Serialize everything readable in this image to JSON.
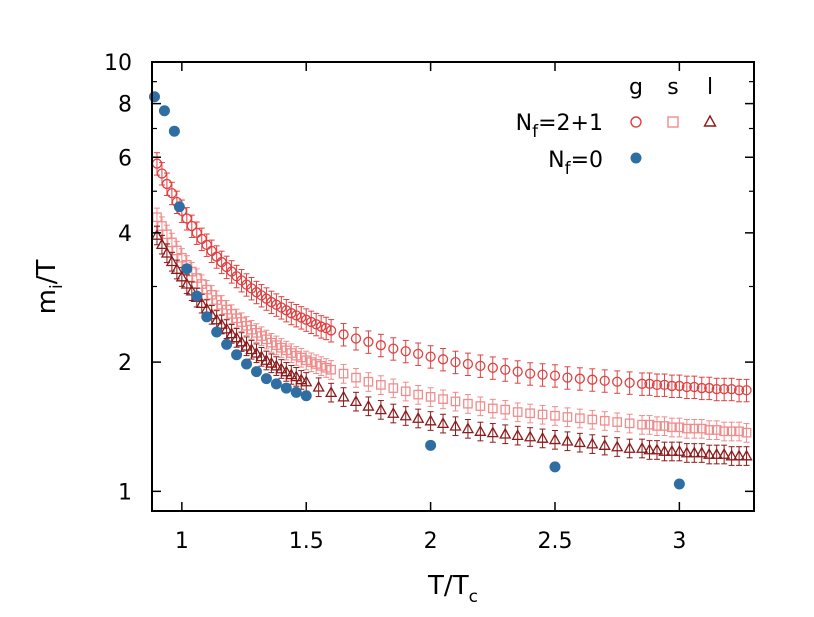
{
  "chart_data": {
    "type": "scatter",
    "title": "",
    "xlabel": {
      "main": "T/T",
      "sub": "c"
    },
    "ylabel": {
      "main": "m",
      "sub": "i",
      "tail": "/T"
    },
    "xlim": [
      0.88,
      3.3
    ],
    "ylim": [
      0.9,
      10
    ],
    "yscale": "log",
    "grid": false,
    "legend_placement": "top-right",
    "xticks": [
      "1",
      "1.5",
      "2",
      "2.5",
      "3"
    ],
    "xtick_values": [
      1,
      1.5,
      2,
      2.5,
      3
    ],
    "yticks": [
      "1",
      "2",
      "4",
      "6",
      "8",
      "10"
    ],
    "ytick_values": [
      1,
      2,
      4,
      6,
      8,
      10
    ],
    "legend": {
      "column_headers": [
        "g",
        "s",
        "l"
      ],
      "rows": [
        {
          "main": "N",
          "sub": "f",
          "tail": "=2+1"
        },
        {
          "main": "N",
          "sub": "f",
          "tail": "=0"
        }
      ]
    },
    "colors": {
      "g": "#e04040",
      "s": "#f08c8c",
      "l": "#8c1a1a",
      "nf0": "#2e6ea2"
    },
    "series": [
      {
        "key": "g",
        "marker": "circle",
        "x": [
          0.9,
          0.92,
          0.94,
          0.96,
          0.98,
          1.0,
          1.02,
          1.04,
          1.06,
          1.08,
          1.1,
          1.12,
          1.14,
          1.16,
          1.18,
          1.2,
          1.22,
          1.24,
          1.26,
          1.28,
          1.3,
          1.32,
          1.34,
          1.36,
          1.38,
          1.4,
          1.42,
          1.44,
          1.46,
          1.48,
          1.5,
          1.52,
          1.54,
          1.56,
          1.58,
          1.6,
          1.65,
          1.7,
          1.75,
          1.8,
          1.85,
          1.9,
          1.95,
          2.0,
          2.05,
          2.1,
          2.15,
          2.2,
          2.25,
          2.3,
          2.35,
          2.4,
          2.45,
          2.5,
          2.55,
          2.6,
          2.65,
          2.7,
          2.75,
          2.8,
          2.85,
          2.88,
          2.91,
          2.94,
          2.97,
          3.0,
          3.03,
          3.06,
          3.09,
          3.12,
          3.15,
          3.18,
          3.21,
          3.24,
          3.27
        ],
        "y": [
          5.8,
          5.5,
          5.2,
          4.95,
          4.72,
          4.5,
          4.32,
          4.15,
          4.0,
          3.87,
          3.75,
          3.63,
          3.52,
          3.42,
          3.33,
          3.25,
          3.17,
          3.1,
          3.03,
          2.97,
          2.91,
          2.86,
          2.81,
          2.76,
          2.72,
          2.68,
          2.64,
          2.6,
          2.57,
          2.54,
          2.51,
          2.48,
          2.45,
          2.42,
          2.4,
          2.37,
          2.32,
          2.27,
          2.23,
          2.19,
          2.15,
          2.12,
          2.09,
          2.06,
          2.03,
          2.0,
          1.98,
          1.96,
          1.94,
          1.92,
          1.9,
          1.88,
          1.87,
          1.86,
          1.84,
          1.83,
          1.82,
          1.81,
          1.8,
          1.79,
          1.78,
          1.78,
          1.77,
          1.77,
          1.76,
          1.76,
          1.75,
          1.75,
          1.74,
          1.74,
          1.73,
          1.73,
          1.73,
          1.72,
          1.72
        ],
        "err": 0.06
      },
      {
        "key": "s",
        "marker": "square",
        "x": [
          0.9,
          0.92,
          0.94,
          0.96,
          0.98,
          1.0,
          1.02,
          1.04,
          1.06,
          1.08,
          1.1,
          1.12,
          1.14,
          1.16,
          1.18,
          1.2,
          1.22,
          1.24,
          1.26,
          1.28,
          1.3,
          1.32,
          1.34,
          1.36,
          1.38,
          1.4,
          1.42,
          1.44,
          1.46,
          1.48,
          1.5,
          1.52,
          1.54,
          1.56,
          1.58,
          1.6,
          1.65,
          1.7,
          1.75,
          1.8,
          1.85,
          1.9,
          1.95,
          2.0,
          2.05,
          2.1,
          2.15,
          2.2,
          2.25,
          2.3,
          2.35,
          2.4,
          2.45,
          2.5,
          2.55,
          2.6,
          2.65,
          2.7,
          2.75,
          2.8,
          2.85,
          2.88,
          2.91,
          2.94,
          2.97,
          3.0,
          3.03,
          3.06,
          3.09,
          3.12,
          3.15,
          3.18,
          3.21,
          3.24,
          3.27
        ],
        "y": [
          4.35,
          4.15,
          3.97,
          3.8,
          3.64,
          3.5,
          3.37,
          3.25,
          3.14,
          3.04,
          2.95,
          2.87,
          2.79,
          2.72,
          2.65,
          2.59,
          2.53,
          2.48,
          2.43,
          2.38,
          2.34,
          2.3,
          2.26,
          2.22,
          2.19,
          2.16,
          2.13,
          2.1,
          2.07,
          2.05,
          2.02,
          2.0,
          1.98,
          1.96,
          1.94,
          1.92,
          1.88,
          1.84,
          1.8,
          1.77,
          1.74,
          1.71,
          1.68,
          1.66,
          1.64,
          1.62,
          1.6,
          1.58,
          1.56,
          1.55,
          1.53,
          1.52,
          1.51,
          1.5,
          1.49,
          1.48,
          1.47,
          1.46,
          1.45,
          1.44,
          1.43,
          1.43,
          1.42,
          1.42,
          1.41,
          1.41,
          1.4,
          1.4,
          1.4,
          1.39,
          1.39,
          1.38,
          1.38,
          1.38,
          1.37
        ],
        "err": 0.05
      },
      {
        "key": "l",
        "marker": "triangle",
        "x": [
          0.9,
          0.92,
          0.94,
          0.96,
          0.98,
          1.0,
          1.02,
          1.04,
          1.06,
          1.08,
          1.1,
          1.12,
          1.14,
          1.16,
          1.18,
          1.2,
          1.22,
          1.24,
          1.26,
          1.28,
          1.3,
          1.32,
          1.34,
          1.36,
          1.38,
          1.4,
          1.42,
          1.44,
          1.46,
          1.48,
          1.5,
          1.55,
          1.6,
          1.65,
          1.7,
          1.75,
          1.8,
          1.85,
          1.9,
          1.95,
          2.0,
          2.05,
          2.1,
          2.15,
          2.2,
          2.25,
          2.3,
          2.35,
          2.4,
          2.45,
          2.5,
          2.55,
          2.6,
          2.65,
          2.7,
          2.75,
          2.8,
          2.85,
          2.88,
          2.91,
          2.94,
          2.97,
          3.0,
          3.03,
          3.06,
          3.09,
          3.12,
          3.15,
          3.18,
          3.21,
          3.24,
          3.27
        ],
        "y": [
          3.95,
          3.76,
          3.59,
          3.43,
          3.29,
          3.16,
          3.04,
          2.93,
          2.83,
          2.74,
          2.66,
          2.58,
          2.51,
          2.45,
          2.39,
          2.33,
          2.28,
          2.23,
          2.18,
          2.14,
          2.1,
          2.06,
          2.02,
          1.99,
          1.96,
          1.93,
          1.9,
          1.87,
          1.85,
          1.82,
          1.8,
          1.75,
          1.7,
          1.66,
          1.62,
          1.58,
          1.55,
          1.52,
          1.5,
          1.48,
          1.46,
          1.44,
          1.42,
          1.4,
          1.38,
          1.37,
          1.36,
          1.35,
          1.34,
          1.33,
          1.32,
          1.31,
          1.3,
          1.29,
          1.28,
          1.27,
          1.26,
          1.26,
          1.25,
          1.25,
          1.24,
          1.24,
          1.24,
          1.23,
          1.23,
          1.23,
          1.22,
          1.22,
          1.22,
          1.21,
          1.21,
          1.21
        ],
        "err": 0.05
      },
      {
        "key": "nf0",
        "marker": "filled-circle",
        "x": [
          0.89,
          0.93,
          0.97,
          0.99,
          1.02,
          1.06,
          1.1,
          1.14,
          1.18,
          1.22,
          1.26,
          1.3,
          1.34,
          1.38,
          1.42,
          1.46,
          1.5,
          2.0,
          2.5,
          3.0
        ],
        "y": [
          8.3,
          7.7,
          6.9,
          4.6,
          3.3,
          2.85,
          2.55,
          2.35,
          2.2,
          2.08,
          1.98,
          1.9,
          1.83,
          1.78,
          1.74,
          1.7,
          1.67,
          1.28,
          1.14,
          1.04
        ]
      }
    ]
  }
}
